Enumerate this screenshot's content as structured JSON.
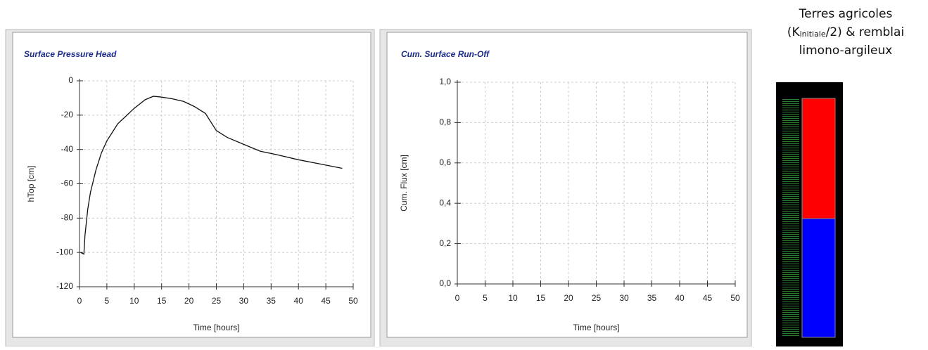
{
  "chart_data": [
    {
      "type": "line",
      "title": "Surface Pressure Head",
      "xlabel": "Time [hours]",
      "ylabel": "hTop [cm]",
      "x": [
        0.2,
        0.8,
        1,
        1.5,
        2,
        3,
        4,
        5,
        6,
        7,
        8,
        10,
        12,
        13.5,
        15,
        17,
        19,
        21,
        23,
        25,
        27,
        30,
        33,
        36,
        40,
        44,
        48
      ],
      "values": [
        -100,
        -101,
        -90,
        -75,
        -65,
        -52,
        -42,
        -35,
        -30,
        -25,
        -22,
        -16,
        -11,
        -9,
        -9.5,
        -10.5,
        -12,
        -15,
        -19,
        -29,
        -33,
        -37,
        -41,
        -43,
        -46,
        -48.5,
        -51
      ],
      "color": "#111111",
      "xlim": [
        0,
        50
      ],
      "ylim": [
        -120,
        0
      ],
      "xticks": [
        0,
        5,
        10,
        15,
        20,
        25,
        30,
        35,
        40,
        45,
        50
      ],
      "yticks": [
        0,
        -20,
        -40,
        -60,
        -80,
        -100,
        -120
      ],
      "grid": true
    },
    {
      "type": "line",
      "title": "Cum. Surface Run-Off",
      "xlabel": "Time [hours]",
      "ylabel": "Cum. Flux [cm]",
      "xlim": [
        0,
        50
      ],
      "ylim": [
        0,
        1
      ],
      "xticks": [
        0,
        5,
        10,
        15,
        20,
        25,
        30,
        35,
        40,
        45,
        50
      ],
      "yticks": [
        {
          "value": 1,
          "label": "1,0"
        },
        {
          "value": 0.8,
          "label": "0,8"
        },
        {
          "value": 0.6,
          "label": "0,6"
        },
        {
          "value": 0.4,
          "label": "0,4"
        },
        {
          "value": 0.2,
          "label": "0,2"
        },
        {
          "value": 0,
          "label": "0,0"
        }
      ],
      "grid": true
    }
  ],
  "side_label": {
    "line1": "Terres agricoles",
    "open": "(K",
    "sub": "initiale",
    "rest": "/2) & remblai",
    "line3": "limono-argileux"
  }
}
